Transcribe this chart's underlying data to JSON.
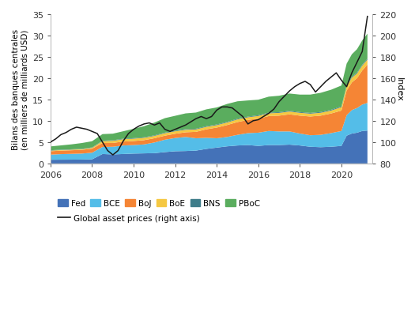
{
  "years": [
    2006,
    2006.5,
    2007,
    2007.5,
    2008,
    2008.5,
    2009,
    2009.5,
    2010,
    2010.5,
    2011,
    2011.5,
    2012,
    2012.5,
    2013,
    2013.5,
    2014,
    2014.5,
    2015,
    2015.5,
    2016,
    2016.5,
    2017,
    2017.5,
    2018,
    2018.5,
    2019,
    2019.5,
    2020,
    2020.25,
    2020.5,
    2020.75,
    2021,
    2021.25
  ],
  "Fed": [
    0.85,
    0.87,
    0.88,
    0.9,
    0.95,
    2.2,
    2.1,
    2.2,
    2.3,
    2.35,
    2.4,
    2.65,
    2.85,
    2.9,
    3.0,
    3.4,
    3.7,
    4.0,
    4.2,
    4.3,
    4.1,
    4.3,
    4.3,
    4.4,
    4.2,
    3.9,
    3.8,
    3.9,
    4.1,
    6.5,
    7.0,
    7.2,
    7.6,
    7.7
  ],
  "BCE": [
    1.2,
    1.3,
    1.35,
    1.4,
    1.55,
    1.65,
    1.8,
    2.0,
    2.0,
    2.1,
    2.5,
    2.9,
    3.1,
    3.3,
    2.9,
    2.6,
    2.2,
    2.2,
    2.5,
    2.8,
    3.1,
    3.3,
    3.2,
    3.1,
    2.8,
    2.7,
    2.9,
    3.2,
    3.5,
    4.8,
    5.5,
    5.8,
    6.2,
    6.5
  ],
  "BoJ": [
    0.8,
    0.82,
    0.85,
    0.88,
    0.95,
    0.92,
    0.9,
    0.92,
    0.95,
    1.0,
    1.0,
    0.95,
    1.0,
    1.1,
    1.5,
    2.0,
    2.5,
    2.8,
    3.0,
    3.1,
    3.3,
    3.5,
    3.7,
    4.0,
    4.2,
    4.4,
    4.5,
    4.6,
    4.8,
    5.8,
    6.5,
    7.0,
    8.0,
    9.0
  ],
  "BoE": [
    0.15,
    0.15,
    0.15,
    0.15,
    0.2,
    0.45,
    0.5,
    0.55,
    0.55,
    0.55,
    0.55,
    0.58,
    0.58,
    0.58,
    0.58,
    0.58,
    0.58,
    0.6,
    0.62,
    0.62,
    0.63,
    0.65,
    0.65,
    0.67,
    0.67,
    0.67,
    0.68,
    0.7,
    0.8,
    1.0,
    1.1,
    1.1,
    1.15,
    1.15
  ],
  "BNS": [
    0.08,
    0.08,
    0.08,
    0.09,
    0.1,
    0.1,
    0.12,
    0.12,
    0.12,
    0.13,
    0.13,
    0.13,
    0.14,
    0.15,
    0.15,
    0.15,
    0.15,
    0.15,
    0.15,
    0.15,
    0.16,
    0.16,
    0.17,
    0.17,
    0.17,
    0.17,
    0.18,
    0.18,
    0.18,
    0.2,
    0.2,
    0.2,
    0.2,
    0.2
  ],
  "PBoC": [
    0.9,
    1.0,
    1.15,
    1.35,
    1.45,
    1.55,
    1.55,
    1.75,
    2.2,
    2.6,
    3.0,
    3.4,
    3.5,
    3.7,
    3.8,
    3.95,
    4.0,
    4.2,
    4.1,
    3.8,
    3.65,
    3.75,
    3.85,
    4.05,
    4.1,
    4.3,
    4.5,
    4.7,
    4.9,
    5.1,
    5.3,
    5.5,
    5.7,
    5.9
  ],
  "global_asset_prices_years": [
    2006,
    2006.25,
    2006.5,
    2006.75,
    2007,
    2007.25,
    2007.5,
    2007.75,
    2008,
    2008.25,
    2008.5,
    2008.75,
    2009,
    2009.25,
    2009.5,
    2009.75,
    2010,
    2010.25,
    2010.5,
    2010.75,
    2011,
    2011.25,
    2011.5,
    2011.75,
    2012,
    2012.25,
    2012.5,
    2012.75,
    2013,
    2013.25,
    2013.5,
    2013.75,
    2014,
    2014.25,
    2014.5,
    2014.75,
    2015,
    2015.25,
    2015.5,
    2015.75,
    2016,
    2016.25,
    2016.5,
    2016.75,
    2017,
    2017.25,
    2017.5,
    2017.75,
    2018,
    2018.25,
    2018.5,
    2018.75,
    2019,
    2019.25,
    2019.5,
    2019.75,
    2020,
    2020.25,
    2020.5,
    2020.75,
    2021,
    2021.25
  ],
  "global_asset_prices": [
    100,
    103,
    107,
    109,
    112,
    114,
    113,
    112,
    110,
    108,
    100,
    92,
    88,
    92,
    101,
    108,
    112,
    115,
    117,
    118,
    116,
    118,
    112,
    110,
    112,
    114,
    116,
    119,
    122,
    124,
    122,
    124,
    130,
    133,
    133,
    132,
    128,
    124,
    117,
    120,
    121,
    124,
    127,
    131,
    138,
    143,
    148,
    152,
    155,
    157,
    154,
    147,
    152,
    157,
    161,
    165,
    158,
    152,
    165,
    175,
    185,
    218
  ],
  "colors": {
    "Fed": "#4472b8",
    "BCE": "#54bde8",
    "BoJ": "#f58535",
    "BoE": "#f5c842",
    "BNS": "#3e7d8a",
    "PBoC": "#5aad5e"
  },
  "ylabel_left": "Bilans des banques centrales\n(en milliers de milliards USD)",
  "ylabel_right": "Index",
  "ylim_left": [
    0,
    35
  ],
  "ylim_right": [
    80,
    220
  ],
  "yticks_left": [
    0,
    5,
    10,
    15,
    20,
    25,
    30,
    35
  ],
  "yticks_right": [
    80,
    100,
    120,
    140,
    160,
    180,
    200,
    220
  ],
  "xlim": [
    2006,
    2021.5
  ],
  "xticks": [
    2006,
    2008,
    2010,
    2012,
    2014,
    2016,
    2018,
    2020
  ],
  "background_color": "#ffffff",
  "line_color": "#1a1a1a",
  "line_label": "Global asset prices (right axis)"
}
